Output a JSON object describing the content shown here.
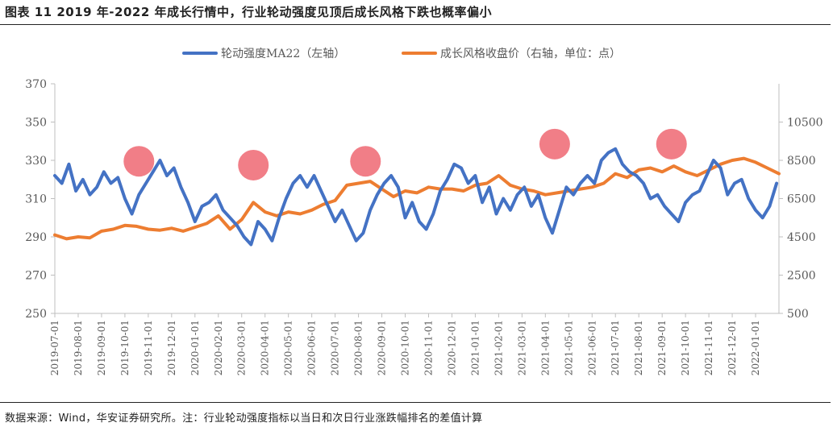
{
  "title": "图表 11 2019 年-2022 年成长行情中，行业轮动强度见顶后成长风格下跌也概率偏小",
  "source": "数据来源：Wind，华安证券研究所。注：行业轮动强度指标以当日和次日行业涨跌幅排名的差值计算",
  "colors": {
    "blue": "#4472c4",
    "orange": "#ed7d31",
    "peak": "#f0707a",
    "axis": "#bfbfbf",
    "text": "#595959"
  },
  "chart_data": {
    "type": "line",
    "legend_position": "top",
    "grid": false,
    "y_left": {
      "ylim": [
        250,
        370
      ],
      "ticks": [
        250,
        270,
        290,
        310,
        330,
        350,
        370
      ]
    },
    "y_right": {
      "ylim": [
        500,
        12500
      ],
      "ticks": [
        500,
        2500,
        4500,
        6500,
        8500,
        10500
      ]
    },
    "x_ticks": [
      "2019-07-01",
      "2019-08-01",
      "2019-09-01",
      "2019-10-01",
      "2019-11-01",
      "2019-12-01",
      "2020-01-01",
      "2020-02-01",
      "2020-03-01",
      "2020-04-01",
      "2020-05-01",
      "2020-06-01",
      "2020-07-01",
      "2020-08-01",
      "2020-09-01",
      "2020-10-01",
      "2020-11-01",
      "2020-12-01",
      "2021-01-01",
      "2021-02-01",
      "2021-03-01",
      "2021-04-01",
      "2021-05-01",
      "2021-06-01",
      "2021-07-01",
      "2021-08-01",
      "2021-09-01",
      "2021-10-01",
      "2021-11-01",
      "2021-12-01",
      "2022-01-01"
    ],
    "series": [
      {
        "name": "轮动强度MA22（左轴）",
        "axis": "left",
        "color": "#4472c4",
        "x": [
          0,
          0.3,
          0.6,
          0.9,
          1.2,
          1.5,
          1.8,
          2.1,
          2.4,
          2.7,
          3.0,
          3.3,
          3.6,
          3.9,
          4.2,
          4.5,
          4.8,
          5.1,
          5.4,
          5.7,
          6.0,
          6.3,
          6.6,
          6.9,
          7.2,
          7.5,
          7.8,
          8.1,
          8.4,
          8.7,
          9.0,
          9.3,
          9.6,
          9.9,
          10.2,
          10.5,
          10.8,
          11.1,
          11.4,
          11.7,
          12.0,
          12.3,
          12.6,
          12.9,
          13.2,
          13.5,
          13.8,
          14.1,
          14.4,
          14.7,
          15.0,
          15.3,
          15.6,
          15.9,
          16.2,
          16.5,
          16.8,
          17.1,
          17.4,
          17.7,
          18.0,
          18.3,
          18.6,
          18.9,
          19.2,
          19.5,
          19.8,
          20.1,
          20.4,
          20.7,
          21.0,
          21.3,
          21.6,
          21.9,
          22.2,
          22.5,
          22.8,
          23.1,
          23.4,
          23.7,
          24.0,
          24.3,
          24.6,
          24.9,
          25.2,
          25.5,
          25.8,
          26.1,
          26.4,
          26.7,
          27.0,
          27.3,
          27.6,
          27.9,
          28.2,
          28.5,
          28.8,
          29.1,
          29.4,
          29.7,
          30.0,
          30.3,
          30.6,
          30.9
        ],
        "values": [
          322,
          318,
          328,
          314,
          320,
          312,
          316,
          324,
          318,
          321,
          310,
          302,
          312,
          318,
          324,
          330,
          322,
          326,
          316,
          308,
          298,
          306,
          308,
          312,
          304,
          300,
          296,
          290,
          286,
          298,
          294,
          288,
          300,
          310,
          318,
          322,
          316,
          322,
          314,
          306,
          298,
          304,
          296,
          288,
          292,
          304,
          312,
          318,
          322,
          316,
          300,
          308,
          298,
          294,
          302,
          314,
          320,
          328,
          326,
          318,
          322,
          308,
          316,
          302,
          310,
          304,
          312,
          316,
          306,
          312,
          300,
          292,
          304,
          316,
          312,
          318,
          322,
          318,
          330,
          334,
          336,
          328,
          324,
          322,
          318,
          310,
          312,
          306,
          302,
          298,
          308,
          312,
          314,
          322,
          330,
          326,
          312,
          318,
          320,
          310,
          304,
          300,
          306,
          318
        ]
      },
      {
        "name": "成长风格收盘价（右轴，单位：点）",
        "axis": "right",
        "color": "#ed7d31",
        "x": [
          0,
          0.5,
          1.0,
          1.5,
          2.0,
          2.5,
          3.0,
          3.5,
          4.0,
          4.5,
          5.0,
          5.5,
          6.0,
          6.5,
          7.0,
          7.5,
          8.0,
          8.5,
          9.0,
          9.5,
          10.0,
          10.5,
          11.0,
          11.5,
          12.0,
          12.5,
          13.0,
          13.5,
          14.0,
          14.5,
          15.0,
          15.5,
          16.0,
          16.5,
          17.0,
          17.5,
          18.0,
          18.5,
          19.0,
          19.5,
          20.0,
          20.5,
          21.0,
          21.5,
          22.0,
          22.5,
          23.0,
          23.5,
          24.0,
          24.5,
          25.0,
          25.5,
          26.0,
          26.5,
          27.0,
          27.5,
          28.0,
          28.5,
          29.0,
          29.5,
          30.0,
          30.5,
          31.0
        ],
        "values": [
          4600,
          4400,
          4500,
          4450,
          4800,
          4900,
          5100,
          5050,
          4900,
          4850,
          4950,
          4800,
          5000,
          5200,
          5600,
          4900,
          5400,
          6300,
          5800,
          5600,
          5800,
          5700,
          5900,
          6200,
          6400,
          7200,
          7300,
          7400,
          7000,
          6600,
          6900,
          6800,
          7100,
          7000,
          7000,
          6900,
          7200,
          7300,
          7700,
          7200,
          7000,
          6900,
          6700,
          6800,
          6900,
          7000,
          7100,
          7300,
          7800,
          7600,
          8000,
          8100,
          7900,
          8200,
          7900,
          7700,
          8000,
          8300,
          8500,
          8600,
          8400,
          8100,
          7800
        ]
      }
    ]
  },
  "peaks": [
    {
      "x": 3.6,
      "y": 329.5
    },
    {
      "x": 8.5,
      "y": 327.5
    },
    {
      "x": 13.3,
      "y": 329.5
    },
    {
      "x": 21.4,
      "y": 338.5
    },
    {
      "x": 26.4,
      "y": 338.5
    }
  ]
}
